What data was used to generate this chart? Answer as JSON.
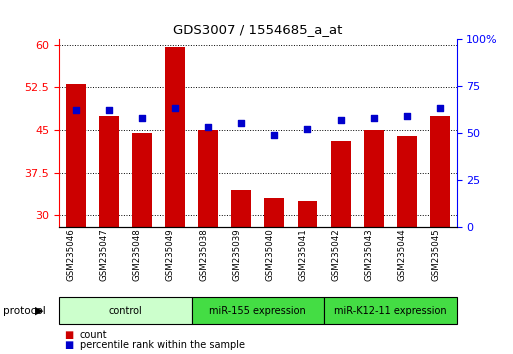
{
  "title": "GDS3007 / 1554685_a_at",
  "samples": [
    "GSM235046",
    "GSM235047",
    "GSM235048",
    "GSM235049",
    "GSM235038",
    "GSM235039",
    "GSM235040",
    "GSM235041",
    "GSM235042",
    "GSM235043",
    "GSM235044",
    "GSM235045"
  ],
  "count_values": [
    53.0,
    47.5,
    44.5,
    59.5,
    45.0,
    34.5,
    33.0,
    32.5,
    43.0,
    45.0,
    44.0,
    47.5
  ],
  "percentile_values": [
    62,
    62,
    58,
    63,
    53,
    55,
    49,
    52,
    57,
    58,
    59,
    63
  ],
  "groups": [
    {
      "label": "control",
      "start": 0,
      "end": 4,
      "color": "#ccffcc"
    },
    {
      "label": "miR-155 expression",
      "start": 4,
      "end": 8,
      "color": "#44dd44"
    },
    {
      "label": "miR-K12-11 expression",
      "start": 8,
      "end": 12,
      "color": "#44dd44"
    }
  ],
  "ylim_left": [
    28,
    61
  ],
  "ylim_right": [
    0,
    100
  ],
  "yticks_left": [
    30,
    37.5,
    45,
    52.5,
    60
  ],
  "yticks_right": [
    0,
    25,
    50,
    75,
    100
  ],
  "bar_color": "#cc0000",
  "dot_color": "#0000cc",
  "bar_width": 0.6,
  "legend_labels": [
    "count",
    "percentile rank within the sample"
  ],
  "legend_colors": [
    "#cc0000",
    "#0000cc"
  ]
}
